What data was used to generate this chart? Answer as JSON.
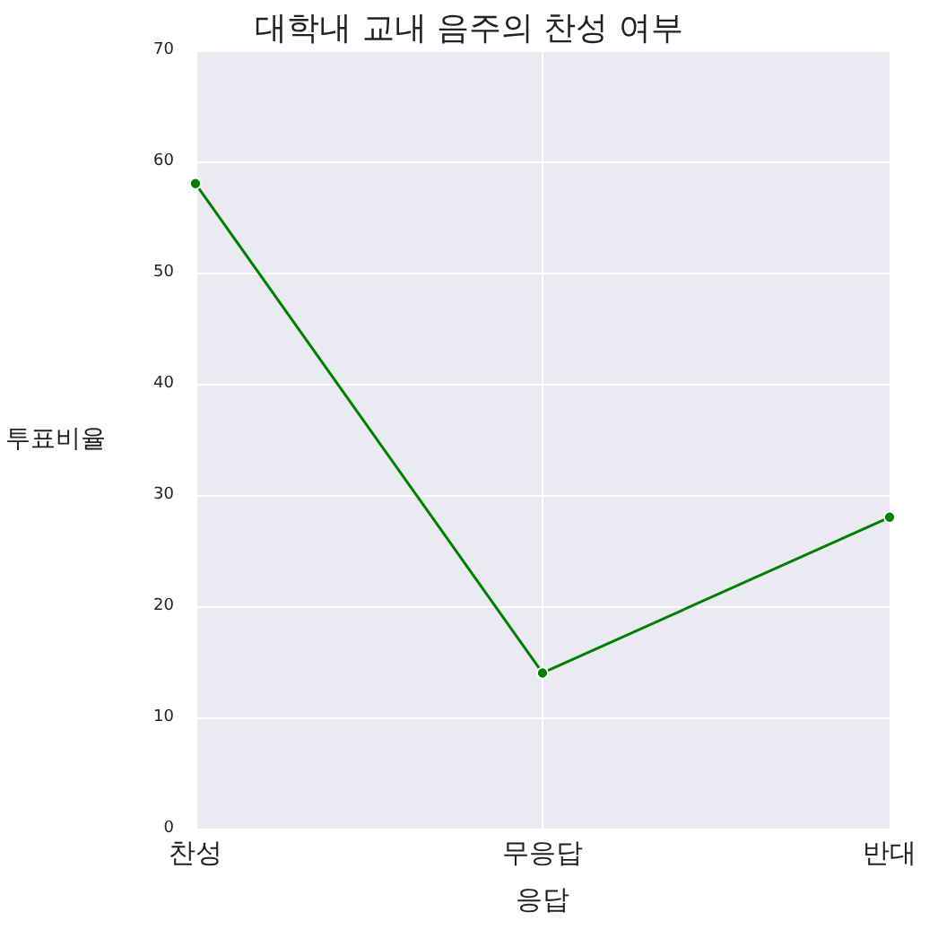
{
  "chart_data": {
    "type": "line",
    "title": "대학내 교내 음주의 찬성 여부",
    "xlabel": "응답",
    "ylabel": "투표비율",
    "categories": [
      "찬성",
      "무응답",
      "반대"
    ],
    "series": [
      {
        "color": "#008000",
        "values": [
          58,
          14,
          28
        ]
      }
    ],
    "ylim": [
      0,
      70
    ],
    "yticks": [
      0,
      10,
      20,
      30,
      40,
      50,
      60,
      70
    ],
    "grid": true,
    "marker": "circle",
    "line_style": "solid"
  }
}
